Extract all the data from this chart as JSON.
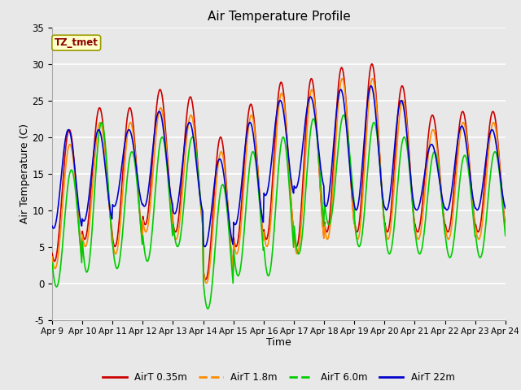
{
  "title": "Air Temperature Profile",
  "xlabel": "Time",
  "ylabel": "Air Temperature (C)",
  "ylim": [
    -5,
    35
  ],
  "background_color": "#e8e8e8",
  "plot_bg_color": "#e8e8e8",
  "grid_color": "#ffffff",
  "series_colors": {
    "AirT 0.35m": "#cc0000",
    "AirT 1.8m": "#ff8c00",
    "AirT 6.0m": "#00cc00",
    "AirT 22m": "#0000cc"
  },
  "legend_labels": [
    "AirT 0.35m",
    "AirT 1.8m",
    "AirT 6.0m",
    "AirT 22m"
  ],
  "xtick_labels": [
    "Apr 9",
    "Apr 10",
    "Apr 11",
    "Apr 12",
    "Apr 13",
    "Apr 14",
    "Apr 15",
    "Apr 16",
    "Apr 17",
    "Apr 18",
    "Apr 19",
    "Apr 20",
    "Apr 21",
    "Apr 22",
    "Apr 23",
    "Apr 24"
  ],
  "annotation_text": "TZ_tmet",
  "annotation_color": "#8b0000",
  "annotation_bg": "#ffffcc",
  "ytick_values": [
    -5,
    0,
    5,
    10,
    15,
    20,
    25,
    30,
    35
  ],
  "n_days": 15,
  "day_peaks_035": [
    21,
    24,
    24,
    26.5,
    25.5,
    20,
    24.5,
    27.5,
    28,
    29.5,
    30,
    27,
    23,
    23.5,
    23.5
  ],
  "day_mins_035": [
    3,
    6,
    5,
    8,
    7,
    0.5,
    5,
    6,
    5,
    7,
    7,
    7,
    7,
    7,
    7
  ],
  "day_peaks_18": [
    19,
    22,
    22,
    24,
    23,
    18,
    23,
    26,
    26.5,
    28,
    28,
    25,
    21,
    22,
    22
  ],
  "day_mins_18": [
    2,
    5,
    4,
    7,
    6,
    0,
    4,
    5,
    4,
    6,
    6,
    6,
    6,
    6,
    6
  ],
  "day_peaks_60": [
    15.5,
    22,
    18,
    20,
    20,
    13.5,
    18,
    20,
    22.5,
    23,
    22,
    20,
    18,
    17.5,
    18
  ],
  "day_mins_60": [
    -0.5,
    1.5,
    2,
    3,
    5,
    -3.5,
    1,
    1,
    4,
    8,
    5,
    4,
    4,
    3.5,
    3.5
  ],
  "day_peaks_22m": [
    21,
    21,
    21,
    23.5,
    22,
    17,
    22,
    25,
    25.5,
    26.5,
    27,
    25,
    19,
    21.5,
    21
  ],
  "day_mins_22m": [
    7.5,
    8.5,
    10.5,
    10.5,
    9.5,
    5,
    8,
    12,
    13,
    10.5,
    10,
    10,
    10,
    10,
    10
  ]
}
